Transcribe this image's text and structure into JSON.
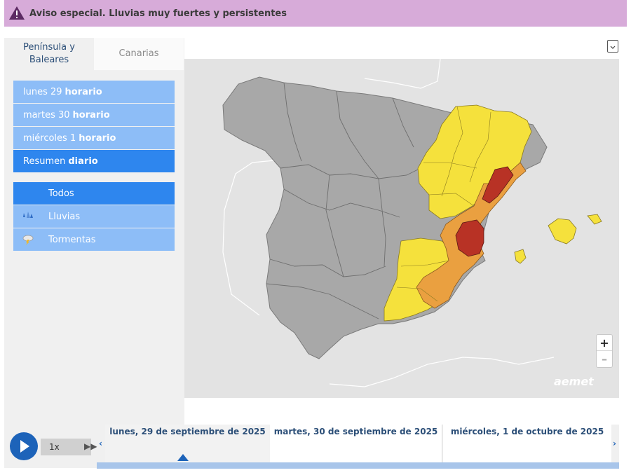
{
  "banner": {
    "title": "Aviso especial. Lluvias muy fuertes y persistentes",
    "icon": "warning-triangle-icon"
  },
  "tabs": [
    {
      "label": "Península y Baleares",
      "active": true
    },
    {
      "label": "Canarias",
      "active": false
    }
  ],
  "days": [
    {
      "prefix": "lunes 29",
      "suffix": "horario"
    },
    {
      "prefix": "martes 30",
      "suffix": "horario"
    },
    {
      "prefix": "miércoles 1",
      "suffix": "horario"
    },
    {
      "prefix": "Resumen",
      "suffix": "diario",
      "selected": true
    }
  ],
  "filters": [
    {
      "label": "Todos",
      "selected": true
    },
    {
      "label": "Lluvias",
      "icon": "rain-icon"
    },
    {
      "label": "Tormentas",
      "icon": "storm-icon"
    }
  ],
  "map": {
    "logo": "aemet",
    "zoom_in": "+",
    "zoom_out": "–",
    "colors": {
      "sea": "#e3e3e3",
      "land": "#a8a8a8",
      "yellow": "#f5e13c",
      "orange": "#eaa040",
      "red": "#b83225",
      "border": "#6e6e6e"
    }
  },
  "timeline": {
    "speed": "1x",
    "fast_forward": "▶▶",
    "prev": "‹",
    "next": "›",
    "days": [
      "lunes, 29 de septiembre de 2025",
      "martes, 30 de septiembre de 2025",
      "miércoles, 1 de octubre de 2025"
    ]
  }
}
